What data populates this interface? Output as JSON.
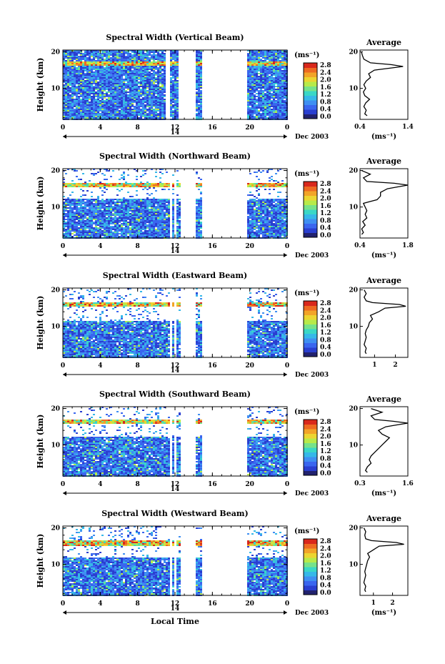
{
  "chart_data": [
    {
      "type": "heatmap",
      "title": "Spectral Width (Vertical Beam)",
      "ylabel": "Height (km)",
      "xticks": [
        "0",
        "4",
        "8",
        "12",
        "16",
        "20",
        "0"
      ],
      "xlim": [
        0,
        24
      ],
      "yticks": [
        "20",
        "10"
      ],
      "ylim": [
        1.5,
        20.5
      ],
      "date_tick": "14",
      "date_label": "Dec 2003",
      "colorbar": {
        "unit": "(ms⁻¹)",
        "ticks": [
          "2.8",
          "2.4",
          "2.0",
          "1.6",
          "1.2",
          "0.8",
          "0.4",
          "0.0"
        ]
      },
      "gaps_hours": [
        [
          11.0,
          11.3
        ],
        [
          11.8,
          11.9
        ],
        [
          12.3,
          14.1
        ],
        [
          14.9,
          19.6
        ]
      ],
      "top_km": 20.5,
      "layer_km": 16.8,
      "avg_title": "Average",
      "avg_xticks": [
        "0.4",
        "1.4"
      ],
      "avg_xlim": [
        0.4,
        1.4
      ],
      "avg_xunit": "(ms⁻¹)",
      "avg_yticks": [
        "20",
        "10"
      ],
      "avg_profile": [
        [
          2.5,
          0.55
        ],
        [
          3,
          0.5
        ],
        [
          4,
          0.53
        ],
        [
          5,
          0.48
        ],
        [
          6,
          0.52
        ],
        [
          7,
          0.6
        ],
        [
          8,
          0.5
        ],
        [
          9,
          0.47
        ],
        [
          10,
          0.52
        ],
        [
          11,
          0.48
        ],
        [
          12,
          0.53
        ],
        [
          13,
          0.62
        ],
        [
          14,
          0.58
        ],
        [
          15,
          0.7
        ],
        [
          16,
          1.3
        ],
        [
          16.5,
          1.05
        ],
        [
          17,
          0.62
        ],
        [
          18,
          0.48
        ],
        [
          19,
          0.45
        ],
        [
          20,
          0.43
        ]
      ]
    },
    {
      "type": "heatmap",
      "title": "Spectral Width (Northward Beam)",
      "ylabel": "Height (km)",
      "xticks": [
        "0",
        "4",
        "8",
        "12",
        "16",
        "20",
        "0"
      ],
      "xlim": [
        0,
        24
      ],
      "yticks": [
        "20",
        "10"
      ],
      "ylim": [
        1.5,
        20.5
      ],
      "date_tick": "14",
      "date_label": "Dec 2003",
      "colorbar": {
        "unit": "(ms⁻¹)",
        "ticks": [
          "2.8",
          "2.4",
          "2.0",
          "1.6",
          "1.2",
          "0.8",
          "0.4",
          "0.0"
        ]
      },
      "gaps_hours": [
        [
          10.8,
          11.0
        ],
        [
          11.3,
          11.5
        ],
        [
          11.9,
          12.1
        ],
        [
          12.4,
          14.1
        ],
        [
          14.9,
          19.6
        ]
      ],
      "top_km": 12.3,
      "layer_km": 16.3,
      "avg_title": "Average",
      "avg_xticks": [
        "0.4",
        "1.8"
      ],
      "avg_xlim": [
        0.4,
        1.8
      ],
      "avg_xunit": "(ms⁻¹)",
      "avg_yticks": [
        "20",
        "10"
      ],
      "avg_profile": [
        [
          2.5,
          0.45
        ],
        [
          3,
          0.5
        ],
        [
          4,
          0.45
        ],
        [
          5,
          0.55
        ],
        [
          6,
          0.48
        ],
        [
          7,
          0.6
        ],
        [
          8,
          0.55
        ],
        [
          9,
          0.6
        ],
        [
          10,
          0.55
        ],
        [
          11,
          0.5
        ],
        [
          11.5,
          0.7
        ],
        [
          12,
          0.9
        ],
        [
          13,
          1.0
        ],
        [
          14,
          1.0
        ],
        [
          15,
          1.2
        ],
        [
          15.5,
          1.5
        ],
        [
          16,
          1.8
        ],
        [
          16.5,
          1.4
        ],
        [
          17,
          0.6
        ],
        [
          18,
          0.5
        ],
        [
          19,
          0.7
        ],
        [
          20,
          0.45
        ]
      ]
    },
    {
      "type": "heatmap",
      "title": "Spectral Width (Eastward Beam)",
      "ylabel": "Height (km)",
      "xticks": [
        "0",
        "4",
        "8",
        "12",
        "16",
        "20",
        "0"
      ],
      "xlim": [
        0,
        24
      ],
      "yticks": [
        "20",
        "10"
      ],
      "ylim": [
        1.5,
        20.5
      ],
      "date_tick": "14",
      "date_label": "Dec 2003",
      "colorbar": {
        "unit": "(ms⁻¹)",
        "ticks": [
          "2.8",
          "2.4",
          "2.0",
          "1.6",
          "1.2",
          "0.8",
          "0.4",
          "0.0"
        ]
      },
      "gaps_hours": [
        [
          10.8,
          11.0
        ],
        [
          11.4,
          11.5
        ],
        [
          11.9,
          12.1
        ],
        [
          12.4,
          14.1
        ],
        [
          14.9,
          19.6
        ]
      ],
      "top_km": 11.8,
      "layer_km": 16.2,
      "avg_title": "Average",
      "avg_xticks": [
        "1",
        "2"
      ],
      "avg_xlim": [
        0.3,
        2.6
      ],
      "avg_xunit": "",
      "avg_yticks": [
        "20",
        "10"
      ],
      "avg_profile": [
        [
          2.5,
          0.6
        ],
        [
          3,
          0.55
        ],
        [
          4,
          0.6
        ],
        [
          5,
          0.5
        ],
        [
          6,
          0.55
        ],
        [
          7,
          0.6
        ],
        [
          8,
          0.55
        ],
        [
          9,
          0.6
        ],
        [
          10,
          0.7
        ],
        [
          11,
          0.75
        ],
        [
          12,
          0.9
        ],
        [
          13,
          0.8
        ],
        [
          14,
          1.2
        ],
        [
          15,
          1.5
        ],
        [
          15.5,
          2.5
        ],
        [
          16,
          2.2
        ],
        [
          16.5,
          0.9
        ],
        [
          17,
          0.6
        ],
        [
          18,
          0.5
        ],
        [
          19,
          0.6
        ],
        [
          20,
          0.5
        ]
      ]
    },
    {
      "type": "heatmap",
      "title": "Spectral Width (Southward Beam)",
      "ylabel": "Height (km)",
      "xticks": [
        "0",
        "4",
        "8",
        "12",
        "16",
        "20",
        "0"
      ],
      "xlim": [
        0,
        24
      ],
      "yticks": [
        "20",
        "10"
      ],
      "ylim": [
        1.5,
        20.5
      ],
      "date_tick": "14",
      "date_label": "Dec 2003",
      "colorbar": {
        "unit": "(ms⁻¹)",
        "ticks": [
          "2.8",
          "2.4",
          "2.0",
          "1.6",
          "1.2",
          "0.8",
          "0.4",
          "0.0"
        ]
      },
      "gaps_hours": [
        [
          10.8,
          11.0
        ],
        [
          11.4,
          11.5
        ],
        [
          11.9,
          12.1
        ],
        [
          12.4,
          14.1
        ],
        [
          14.9,
          19.6
        ]
      ],
      "top_km": 12.4,
      "layer_km": 16.6,
      "avg_title": "Average",
      "avg_xticks": [
        "0.3",
        "1.6"
      ],
      "avg_xlim": [
        0.3,
        1.6
      ],
      "avg_xunit": "(ms⁻¹)",
      "avg_yticks": [
        "20",
        "10"
      ],
      "avg_profile": [
        [
          2.5,
          0.5
        ],
        [
          3,
          0.45
        ],
        [
          4,
          0.5
        ],
        [
          5,
          0.6
        ],
        [
          6,
          0.55
        ],
        [
          7,
          0.6
        ],
        [
          8,
          0.7
        ],
        [
          9,
          0.8
        ],
        [
          10,
          0.9
        ],
        [
          11,
          1.0
        ],
        [
          12,
          1.1
        ],
        [
          13,
          0.9
        ],
        [
          14,
          0.8
        ],
        [
          15,
          1.0
        ],
        [
          15.5,
          1.3
        ],
        [
          16,
          1.6
        ],
        [
          16.5,
          1.2
        ],
        [
          17,
          0.7
        ],
        [
          18,
          0.6
        ],
        [
          19,
          0.9
        ],
        [
          20,
          0.6
        ]
      ]
    },
    {
      "type": "heatmap",
      "title": "Spectral Width (Westward Beam)",
      "ylabel": "Height (km)",
      "xticks": [
        "0",
        "4",
        "8",
        "12",
        "16",
        "20",
        "0"
      ],
      "xlim": [
        0,
        24
      ],
      "yticks": [
        "20",
        "10"
      ],
      "ylim": [
        1.5,
        20.5
      ],
      "date_tick": "14",
      "date_label": "Dec 2003",
      "xlabel": "Local Time",
      "colorbar": {
        "unit": "(ms⁻¹)",
        "ticks": [
          "2.8",
          "2.4",
          "2.0",
          "1.6",
          "1.2",
          "0.8",
          "0.4",
          "0.0"
        ]
      },
      "gaps_hours": [
        [
          10.8,
          11.0
        ],
        [
          11.4,
          11.5
        ],
        [
          11.9,
          12.1
        ],
        [
          12.4,
          14.1
        ],
        [
          14.9,
          19.6
        ]
      ],
      "top_km": 12.2,
      "layer_km": 16.0,
      "avg_title": "Average",
      "avg_xticks": [
        "1",
        "2"
      ],
      "avg_xlim": [
        0.3,
        2.8
      ],
      "avg_xunit": "(ms⁻¹)",
      "avg_yticks": [
        "20",
        "10"
      ],
      "avg_profile": [
        [
          2.5,
          0.6
        ],
        [
          3,
          0.55
        ],
        [
          4,
          0.6
        ],
        [
          5,
          0.5
        ],
        [
          6,
          0.55
        ],
        [
          7,
          0.6
        ],
        [
          8,
          0.55
        ],
        [
          9,
          0.6
        ],
        [
          10,
          0.65
        ],
        [
          11,
          0.7
        ],
        [
          12,
          0.8
        ],
        [
          13,
          0.7
        ],
        [
          14,
          1.0
        ],
        [
          15,
          1.3
        ],
        [
          15.5,
          2.6
        ],
        [
          16,
          2.2
        ],
        [
          16.5,
          0.9
        ],
        [
          17,
          0.6
        ],
        [
          18,
          0.55
        ],
        [
          19,
          0.6
        ],
        [
          20,
          0.5
        ]
      ]
    }
  ]
}
